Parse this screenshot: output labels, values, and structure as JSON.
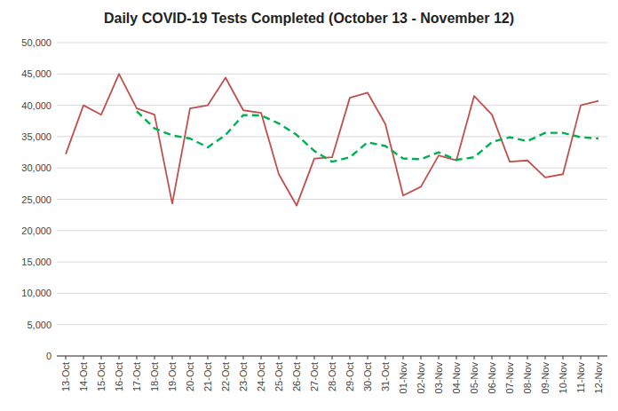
{
  "chart_data": {
    "type": "line",
    "title": "Daily COVID-19 Tests Completed (October 13 - November 12)",
    "categories": [
      "13-Oct",
      "14-Oct",
      "15-Oct",
      "16-Oct",
      "17-Oct",
      "18-Oct",
      "19-Oct",
      "20-Oct",
      "21-Oct",
      "22-Oct",
      "23-Oct",
      "24-Oct",
      "25-Oct",
      "26-Oct",
      "27-Oct",
      "28-Oct",
      "29-Oct",
      "30-Oct",
      "31-Oct",
      "01-Nov",
      "02-Nov",
      "03-Nov",
      "04-Nov",
      "05-Nov",
      "06-Nov",
      "07-Nov",
      "08-Nov",
      "09-Nov",
      "10-Nov",
      "11-Nov",
      "12-Nov"
    ],
    "series": [
      {
        "color": "#c0504d",
        "line_style": "solid",
        "values": [
          32200,
          40000,
          38500,
          45000,
          39500,
          38500,
          24300,
          39500,
          40000,
          44400,
          39200,
          38800,
          29000,
          24000,
          31500,
          31700,
          41200,
          42000,
          37000,
          25600,
          27000,
          32000,
          31200,
          41500,
          38500,
          31000,
          31200,
          28500,
          29000,
          40000,
          40700
        ]
      },
      {
        "color": "#00b050",
        "line_style": "dashed",
        "values": [
          null,
          null,
          null,
          null,
          39040,
          36300,
          35200,
          34700,
          33300,
          35260,
          38440,
          38380,
          37100,
          35300,
          32700,
          31000,
          31700,
          34100,
          33500,
          31500,
          31400,
          32500,
          31300,
          31700,
          34140,
          34900,
          34280,
          35600,
          35600,
          34900,
          34700
        ]
      }
    ],
    "ylim": [
      0,
      50000
    ],
    "yticks": [
      0,
      {
        "value": 5000,
        "label": "5,000"
      },
      {
        "value": 10000,
        "label": "10,000"
      },
      {
        "value": 15000,
        "label": "15,000"
      },
      {
        "value": 20000,
        "label": "20,000"
      },
      {
        "value": 25000,
        "label": "25,000"
      },
      {
        "value": 30000,
        "label": "30,000"
      },
      {
        "value": 35000,
        "label": "35,000"
      },
      {
        "value": 40000,
        "label": "40,000"
      },
      {
        "value": 45000,
        "label": "45,000"
      },
      {
        "value": 50000,
        "label": "50,000"
      }
    ],
    "grid": true
  }
}
